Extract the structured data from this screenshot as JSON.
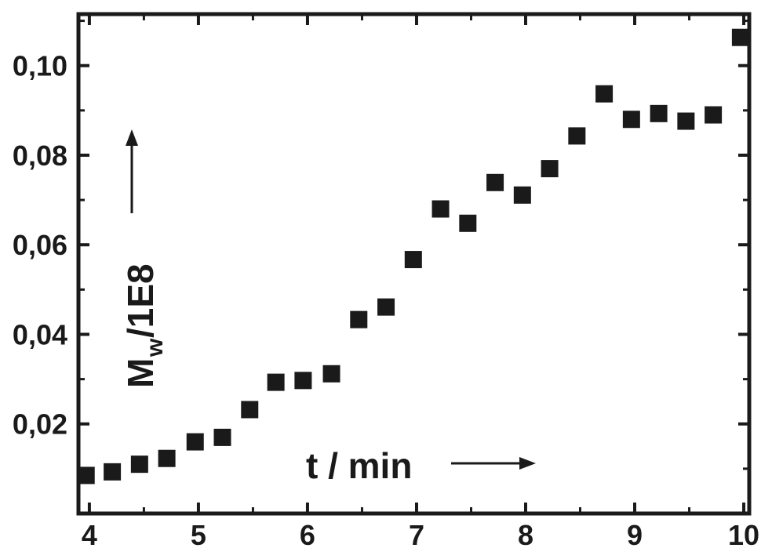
{
  "chart_data": {
    "type": "scatter",
    "xlabel": "t / min",
    "ylabel_main": "M",
    "ylabel_sub": "w",
    "ylabel_rest": "/1E8",
    "xlim": [
      3.9,
      10.05
    ],
    "ylim": [
      0.0,
      0.1115
    ],
    "xticks": [
      4,
      5,
      6,
      7,
      8,
      9,
      10
    ],
    "yticks": [
      0.02,
      0.04,
      0.06,
      0.08,
      0.1
    ],
    "ytick_labels": [
      "0,02",
      "0,04",
      "0,06",
      "0,08",
      "0,10"
    ],
    "grid": false,
    "series": [
      {
        "marker": "square",
        "color": "#1a1a1a",
        "x": [
          3.97,
          4.21,
          4.46,
          4.71,
          4.97,
          5.22,
          5.47,
          5.71,
          5.96,
          6.22,
          6.47,
          6.72,
          6.97,
          7.22,
          7.47,
          7.72,
          7.97,
          8.22,
          8.47,
          8.72,
          8.97,
          9.22,
          9.47,
          9.72,
          9.97
        ],
        "y": [
          0.0085,
          0.0093,
          0.011,
          0.0123,
          0.016,
          0.017,
          0.0232,
          0.0293,
          0.0297,
          0.0312,
          0.0433,
          0.0461,
          0.0567,
          0.068,
          0.0648,
          0.0739,
          0.0711,
          0.077,
          0.0843,
          0.0937,
          0.088,
          0.0893,
          0.0876,
          0.089,
          0.1063
        ]
      }
    ]
  }
}
